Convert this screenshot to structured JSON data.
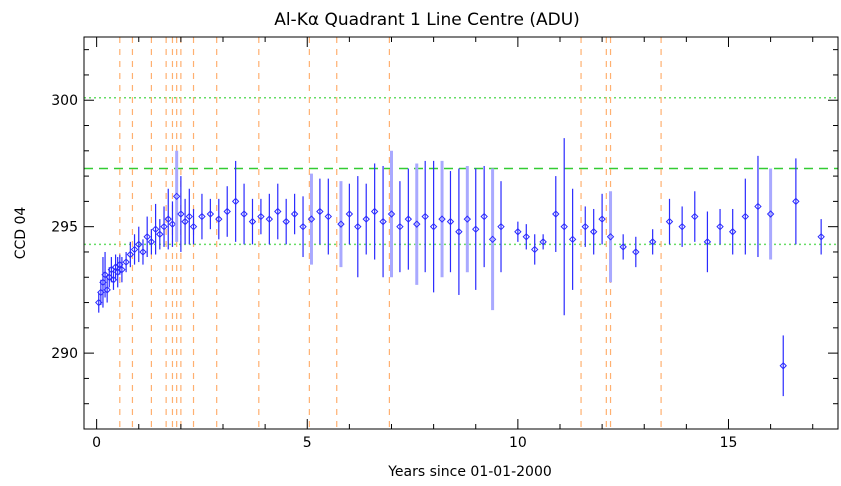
{
  "chart_data": {
    "type": "scatter",
    "title": "Al-Kα  Quadrant 1   Line Centre (ADU)",
    "xlabel": "Years since 01-01-2000",
    "ylabel": "CCD 04",
    "xlim": [
      -0.3,
      17.6
    ],
    "ylim": [
      287.0,
      302.5
    ],
    "x_ticks": [
      0,
      5,
      10,
      15
    ],
    "x_tick_labels": [
      "0",
      "5",
      "10",
      "15"
    ],
    "y_ticks": [
      290,
      295,
      300
    ],
    "y_tick_labels": [
      "290",
      "295",
      "300"
    ],
    "grid": false,
    "colors": {
      "points": "#2a2aff",
      "errorbars": "#2a2aff",
      "errorbars_light": "#a9a9ff",
      "mean_line": "#33cc33",
      "sigma_lines": "#66dd66",
      "events": "#ffb070"
    },
    "reference_lines": [
      {
        "y": 297.3,
        "style": "dashed"
      },
      {
        "y": 300.1,
        "style": "dotted"
      },
      {
        "y": 294.3,
        "style": "dotted"
      }
    ],
    "event_lines_x": [
      0.55,
      0.85,
      1.3,
      1.65,
      1.8,
      1.9,
      2.0,
      2.3,
      2.85,
      3.85,
      5.05,
      5.7,
      6.95,
      11.5,
      12.1,
      12.2,
      13.4
    ],
    "series": [
      {
        "points": [
          [
            0.05,
            292.0,
            0.4
          ],
          [
            0.1,
            292.4,
            0.5
          ],
          [
            0.15,
            292.8,
            1.0
          ],
          [
            0.2,
            293.1,
            0.9
          ],
          [
            0.25,
            292.5,
            0.5
          ],
          [
            0.3,
            293.0,
            0.4
          ],
          [
            0.35,
            293.3,
            0.5
          ],
          [
            0.4,
            292.9,
            0.4
          ],
          [
            0.45,
            293.4,
            0.5
          ],
          [
            0.5,
            293.2,
            0.6
          ],
          [
            0.55,
            293.5,
            0.4
          ],
          [
            0.6,
            293.3,
            0.5
          ],
          [
            0.7,
            293.6,
            0.4
          ],
          [
            0.8,
            293.9,
            0.5
          ],
          [
            0.9,
            294.1,
            0.6
          ],
          [
            1.0,
            294.3,
            0.7
          ],
          [
            1.1,
            294.0,
            0.5
          ],
          [
            1.2,
            294.6,
            0.8
          ],
          [
            1.3,
            294.4,
            0.5
          ],
          [
            1.4,
            294.9,
            1.0
          ],
          [
            1.5,
            294.7,
            0.6
          ],
          [
            1.6,
            295.0,
            0.8
          ],
          [
            1.7,
            295.3,
            1.2
          ],
          [
            1.8,
            295.1,
            0.9
          ],
          [
            1.9,
            296.2,
            1.8
          ],
          [
            2.0,
            295.5,
            1.5
          ],
          [
            2.1,
            295.2,
            0.9
          ],
          [
            2.2,
            295.4,
            1.1
          ],
          [
            2.3,
            295.0,
            0.7
          ],
          [
            2.5,
            295.4,
            0.9
          ],
          [
            2.7,
            295.5,
            0.6
          ],
          [
            2.9,
            295.3,
            0.8
          ],
          [
            3.1,
            295.6,
            1.0
          ],
          [
            3.3,
            296.0,
            1.6
          ],
          [
            3.5,
            295.5,
            1.2
          ],
          [
            3.7,
            295.2,
            0.9
          ],
          [
            3.9,
            295.4,
            0.7
          ],
          [
            4.1,
            295.3,
            1.0
          ],
          [
            4.3,
            295.6,
            1.1
          ],
          [
            4.5,
            295.2,
            0.9
          ],
          [
            4.7,
            295.5,
            0.8
          ],
          [
            4.9,
            295.0,
            1.2
          ],
          [
            5.1,
            295.3,
            1.8
          ],
          [
            5.3,
            295.6,
            1.3
          ],
          [
            5.5,
            295.4,
            1.5
          ],
          [
            5.8,
            295.1,
            1.7
          ],
          [
            6.0,
            295.5,
            1.2
          ],
          [
            6.2,
            295.0,
            2.0
          ],
          [
            6.4,
            295.3,
            1.4
          ],
          [
            6.6,
            295.6,
            1.9
          ],
          [
            6.8,
            295.2,
            2.2
          ],
          [
            7.0,
            295.5,
            2.5
          ],
          [
            7.2,
            295.0,
            1.8
          ],
          [
            7.4,
            295.3,
            2.0
          ],
          [
            7.6,
            295.1,
            2.4
          ],
          [
            7.8,
            295.4,
            2.2
          ],
          [
            8.0,
            295.0,
            2.6
          ],
          [
            8.2,
            295.3,
            2.3
          ],
          [
            8.4,
            295.2,
            2.0
          ],
          [
            8.6,
            294.8,
            2.5
          ],
          [
            8.8,
            295.3,
            2.1
          ],
          [
            9.0,
            294.9,
            2.4
          ],
          [
            9.2,
            295.4,
            2.0
          ],
          [
            9.4,
            294.5,
            2.8
          ],
          [
            9.6,
            295.0,
            1.8
          ],
          [
            10.0,
            294.8,
            0.4
          ],
          [
            10.2,
            294.6,
            0.5
          ],
          [
            10.4,
            294.1,
            0.6
          ],
          [
            10.6,
            294.4,
            0.3
          ],
          [
            10.9,
            295.5,
            1.5
          ],
          [
            11.1,
            295.0,
            3.5
          ],
          [
            11.3,
            294.5,
            2.0
          ],
          [
            11.6,
            295.0,
            0.8
          ],
          [
            11.8,
            294.8,
            0.9
          ],
          [
            12.0,
            295.3,
            1.0
          ],
          [
            12.2,
            294.6,
            1.8
          ],
          [
            12.5,
            294.2,
            0.5
          ],
          [
            12.8,
            294.0,
            0.6
          ],
          [
            13.2,
            294.4,
            0.5
          ],
          [
            13.6,
            295.2,
            0.9
          ],
          [
            13.9,
            295.0,
            0.8
          ],
          [
            14.2,
            295.4,
            1.0
          ],
          [
            14.5,
            294.4,
            1.2
          ],
          [
            14.8,
            295.0,
            0.7
          ],
          [
            15.1,
            294.8,
            0.9
          ],
          [
            15.4,
            295.4,
            1.5
          ],
          [
            15.7,
            295.8,
            2.0
          ],
          [
            16.0,
            295.5,
            1.8
          ],
          [
            16.3,
            289.5,
            1.2
          ],
          [
            16.6,
            296.0,
            1.7
          ],
          [
            17.2,
            294.6,
            0.7
          ]
        ]
      }
    ]
  }
}
